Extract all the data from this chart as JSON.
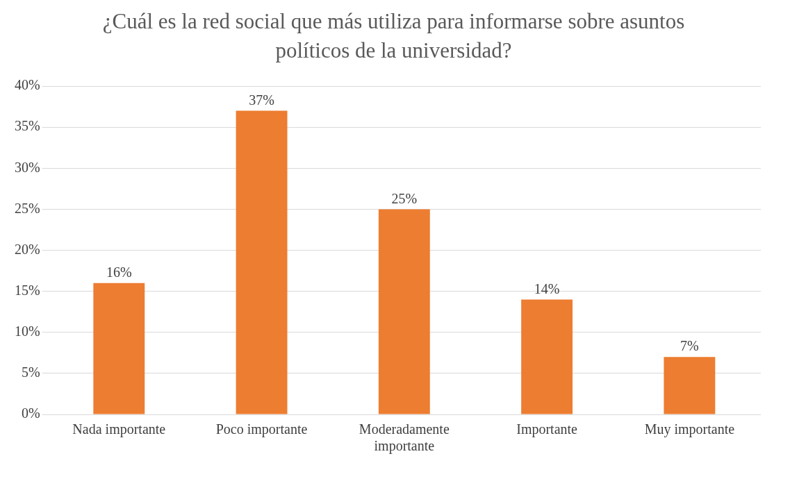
{
  "chart_data": {
    "type": "bar",
    "title": "¿Cuál es la red social que más utiliza para informarse sobre asuntos políticos de la universidad?",
    "categories": [
      "Nada importante",
      "Poco importante",
      "Moderadamente importante",
      "Importante",
      "Muy importante"
    ],
    "values": [
      16,
      37,
      25,
      14,
      7
    ],
    "color": "#ed7d31",
    "value_labels": [
      "16%",
      "37%",
      "25%",
      "14%",
      "7%"
    ],
    "ylim": [
      0,
      40
    ],
    "yticks": [
      {
        "value": 0,
        "label": "0%"
      },
      {
        "value": 5,
        "label": "5%"
      },
      {
        "value": 10,
        "label": "10%"
      },
      {
        "value": 15,
        "label": "15%"
      },
      {
        "value": 20,
        "label": "20%"
      },
      {
        "value": 25,
        "label": "25%"
      },
      {
        "value": 30,
        "label": "30%"
      },
      {
        "value": 35,
        "label": "35%"
      },
      {
        "value": 40,
        "label": "40%"
      }
    ],
    "grid": "y"
  }
}
